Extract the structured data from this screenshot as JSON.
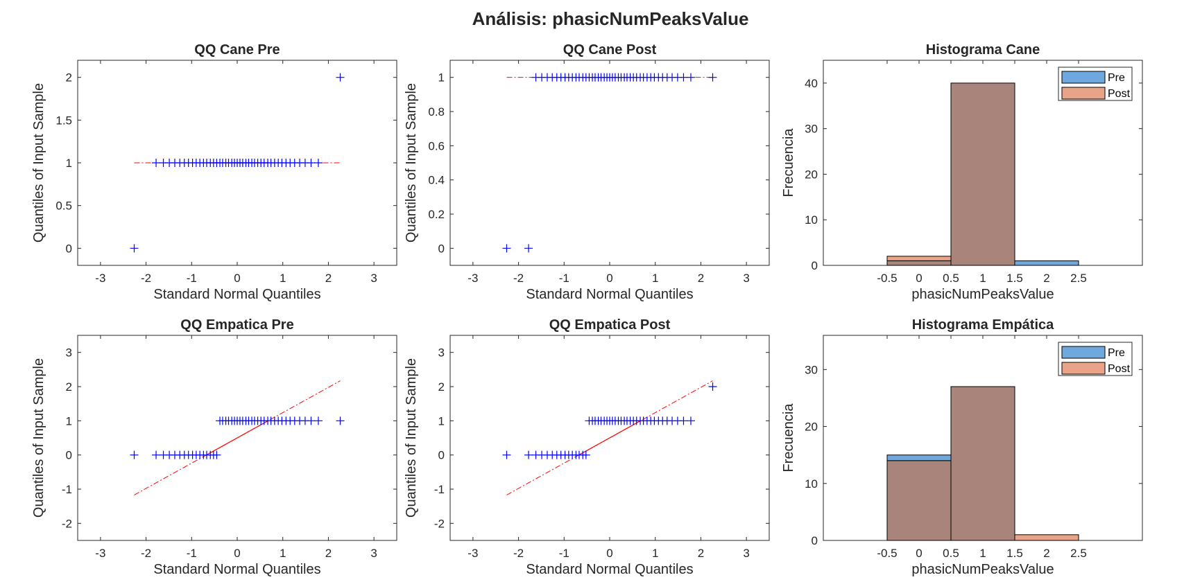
{
  "figure": {
    "title": "Análisis: phasicNumPeaksValue"
  },
  "colors": {
    "marker": "#0000ff",
    "refline": "#ff0000",
    "pre": "#6fa8dc",
    "post": "#e9a388",
    "overlap": "#a9847a"
  },
  "chart_data": [
    {
      "id": "qq-cane-pre",
      "type": "scatter",
      "title": "QQ Cane Pre",
      "xlabel": "Standard Normal Quantiles",
      "ylabel": "Quantiles of Input Sample",
      "xlim": [
        -3.5,
        3.5
      ],
      "ylim": [
        -0.2,
        2.2
      ],
      "xticks": [
        -3,
        -2,
        -1,
        0,
        1,
        2,
        3
      ],
      "yticks": [
        0,
        0.5,
        1,
        1.5,
        2
      ],
      "ytick_labels": [
        "0",
        "0.5",
        "1",
        "1.5",
        "2"
      ],
      "points": {
        "x": [
          -2.26,
          -1.78,
          -1.62,
          -1.49,
          -1.37,
          -1.26,
          -1.16,
          -1.07,
          -0.98,
          -0.9,
          -0.82,
          -0.74,
          -0.67,
          -0.59,
          -0.52,
          -0.45,
          -0.38,
          -0.32,
          -0.25,
          -0.19,
          -0.12,
          -0.06,
          0.0,
          0.06,
          0.12,
          0.19,
          0.25,
          0.32,
          0.38,
          0.45,
          0.52,
          0.59,
          0.67,
          0.74,
          0.82,
          0.9,
          0.98,
          1.07,
          1.16,
          1.26,
          1.37,
          1.49,
          1.62,
          1.78,
          2.26
        ],
        "y": [
          0,
          1,
          1,
          1,
          1,
          1,
          1,
          1,
          1,
          1,
          1,
          1,
          1,
          1,
          1,
          1,
          1,
          1,
          1,
          1,
          1,
          1,
          1,
          1,
          1,
          1,
          1,
          1,
          1,
          1,
          1,
          1,
          1,
          1,
          1,
          1,
          1,
          1,
          1,
          1,
          1,
          1,
          1,
          1,
          2
        ]
      },
      "ref_line": {
        "x": [
          -2.26,
          2.26
        ],
        "y": [
          1.0,
          1.0
        ],
        "solid_x": [
          -0.67,
          0.67
        ]
      }
    },
    {
      "id": "qq-cane-post",
      "type": "scatter",
      "title": "QQ Cane Post",
      "xlabel": "Standard Normal Quantiles",
      "ylabel": "Quantiles of Input Sample",
      "xlim": [
        -3.5,
        3.5
      ],
      "ylim": [
        -0.1,
        1.1
      ],
      "xticks": [
        -3,
        -2,
        -1,
        0,
        1,
        2,
        3
      ],
      "yticks": [
        0,
        0.2,
        0.4,
        0.6,
        0.8,
        1
      ],
      "ytick_labels": [
        "0",
        "0.2",
        "0.4",
        "0.6",
        "0.8",
        "1"
      ],
      "points": {
        "x": [
          -2.26,
          -1.78,
          -1.62,
          -1.49,
          -1.37,
          -1.26,
          -1.16,
          -1.07,
          -0.98,
          -0.9,
          -0.82,
          -0.74,
          -0.67,
          -0.59,
          -0.52,
          -0.45,
          -0.38,
          -0.32,
          -0.25,
          -0.19,
          -0.12,
          -0.06,
          0.0,
          0.06,
          0.12,
          0.19,
          0.25,
          0.32,
          0.38,
          0.45,
          0.52,
          0.59,
          0.67,
          0.74,
          0.82,
          0.9,
          0.98,
          1.07,
          1.16,
          1.26,
          1.37,
          1.49,
          1.62,
          1.78,
          2.26
        ],
        "y": [
          0,
          0,
          1,
          1,
          1,
          1,
          1,
          1,
          1,
          1,
          1,
          1,
          1,
          1,
          1,
          1,
          1,
          1,
          1,
          1,
          1,
          1,
          1,
          1,
          1,
          1,
          1,
          1,
          1,
          1,
          1,
          1,
          1,
          1,
          1,
          1,
          1,
          1,
          1,
          1,
          1,
          1,
          1,
          1,
          1
        ]
      },
      "ref_line": {
        "x": [
          -2.26,
          2.26
        ],
        "y": [
          1.0,
          1.0
        ],
        "solid_x": [
          -0.67,
          0.67
        ]
      }
    },
    {
      "id": "hist-cane",
      "type": "bar",
      "title": "Histograma Cane",
      "xlabel": "phasicNumPeaksValue",
      "ylabel": "Frecuencia",
      "xlim": [
        -1.5,
        3.5
      ],
      "ylim": [
        0,
        45
      ],
      "xticks": [
        -0.5,
        0,
        0.5,
        1,
        1.5,
        2,
        2.5
      ],
      "xtick_labels": [
        "-0.5",
        "0",
        "0.5",
        "1",
        "1.5",
        "2",
        "2.5"
      ],
      "yticks": [
        0,
        10,
        20,
        30,
        40
      ],
      "ytick_labels": [
        "0",
        "10",
        "20",
        "30",
        "40"
      ],
      "bin_edges": [
        -0.5,
        0.5,
        1.5,
        2.5
      ],
      "series": [
        {
          "name": "Pre",
          "values": [
            1,
            40,
            1
          ]
        },
        {
          "name": "Post",
          "values": [
            2,
            40,
            0
          ]
        }
      ],
      "legend": {
        "position": "top-right"
      }
    },
    {
      "id": "qq-empatica-pre",
      "type": "scatter",
      "title": "QQ Empatica Pre",
      "xlabel": "Standard Normal Quantiles",
      "ylabel": "Quantiles of Input Sample",
      "xlim": [
        -3.5,
        3.5
      ],
      "ylim": [
        -2.5,
        3.5
      ],
      "xticks": [
        -3,
        -2,
        -1,
        0,
        1,
        2,
        3
      ],
      "yticks": [
        -2,
        -1,
        0,
        1,
        2,
        3
      ],
      "ytick_labels": [
        "-2",
        "-1",
        "0",
        "1",
        "2",
        "3"
      ],
      "points": {
        "x": [
          -2.26,
          -1.78,
          -1.62,
          -1.49,
          -1.37,
          -1.26,
          -1.16,
          -1.07,
          -0.98,
          -0.9,
          -0.82,
          -0.74,
          -0.67,
          -0.59,
          -0.52,
          -0.45,
          -0.38,
          -0.32,
          -0.25,
          -0.19,
          -0.12,
          -0.06,
          0.0,
          0.06,
          0.12,
          0.19,
          0.25,
          0.32,
          0.38,
          0.45,
          0.52,
          0.59,
          0.67,
          0.74,
          0.82,
          0.9,
          0.98,
          1.07,
          1.16,
          1.26,
          1.37,
          1.49,
          1.62,
          1.78,
          2.26
        ],
        "y": [
          0,
          0,
          0,
          0,
          0,
          0,
          0,
          0,
          0,
          0,
          0,
          0,
          0,
          0,
          0,
          0,
          1,
          1,
          1,
          1,
          1,
          1,
          1,
          1,
          1,
          1,
          1,
          1,
          1,
          1,
          1,
          1,
          1,
          1,
          1,
          1,
          1,
          1,
          1,
          1,
          1,
          1,
          1,
          1,
          1
        ]
      },
      "ref_line": {
        "x": [
          -2.26,
          2.26
        ],
        "y": [
          -1.17,
          2.17
        ],
        "solid_x": [
          -0.67,
          0.67
        ]
      }
    },
    {
      "id": "qq-empatica-post",
      "type": "scatter",
      "title": "QQ Empatica Post",
      "xlabel": "Standard Normal Quantiles",
      "ylabel": "Quantiles of Input Sample",
      "xlim": [
        -3.5,
        3.5
      ],
      "ylim": [
        -2.5,
        3.5
      ],
      "xticks": [
        -3,
        -2,
        -1,
        0,
        1,
        2,
        3
      ],
      "yticks": [
        -2,
        -1,
        0,
        1,
        2,
        3
      ],
      "ytick_labels": [
        "-2",
        "-1",
        "0",
        "1",
        "2",
        "3"
      ],
      "points": {
        "x": [
          -2.26,
          -1.78,
          -1.62,
          -1.49,
          -1.37,
          -1.26,
          -1.16,
          -1.07,
          -0.98,
          -0.9,
          -0.82,
          -0.74,
          -0.67,
          -0.59,
          -0.52,
          -0.45,
          -0.38,
          -0.32,
          -0.25,
          -0.19,
          -0.12,
          -0.06,
          0.0,
          0.06,
          0.12,
          0.19,
          0.25,
          0.32,
          0.38,
          0.45,
          0.52,
          0.59,
          0.67,
          0.74,
          0.82,
          0.9,
          0.98,
          1.07,
          1.16,
          1.26,
          1.37,
          1.49,
          1.62,
          1.78,
          2.26
        ],
        "y": [
          0,
          0,
          0,
          0,
          0,
          0,
          0,
          0,
          0,
          0,
          0,
          0,
          0,
          0,
          0,
          1,
          1,
          1,
          1,
          1,
          1,
          1,
          1,
          1,
          1,
          1,
          1,
          1,
          1,
          1,
          1,
          1,
          1,
          1,
          1,
          1,
          1,
          1,
          1,
          1,
          1,
          1,
          1,
          1,
          2
        ]
      },
      "ref_line": {
        "x": [
          -2.26,
          2.26
        ],
        "y": [
          -1.17,
          2.17
        ],
        "solid_x": [
          -0.67,
          0.67
        ]
      }
    },
    {
      "id": "hist-empatica",
      "type": "bar",
      "title": "Histograma Empática",
      "xlabel": "phasicNumPeaksValue",
      "ylabel": "Frecuencia",
      "xlim": [
        -1.5,
        3.5
      ],
      "ylim": [
        0,
        36
      ],
      "xticks": [
        -0.5,
        0,
        0.5,
        1,
        1.5,
        2,
        2.5
      ],
      "xtick_labels": [
        "-0.5",
        "0",
        "0.5",
        "1",
        "1.5",
        "2",
        "2.5"
      ],
      "yticks": [
        0,
        10,
        20,
        30
      ],
      "ytick_labels": [
        "0",
        "10",
        "20",
        "30"
      ],
      "bin_edges": [
        -0.5,
        0.5,
        1.5,
        2.5
      ],
      "series": [
        {
          "name": "Pre",
          "values": [
            15,
            27,
            0
          ]
        },
        {
          "name": "Post",
          "values": [
            14,
            27,
            1
          ]
        }
      ],
      "legend": {
        "position": "top-right"
      }
    }
  ]
}
